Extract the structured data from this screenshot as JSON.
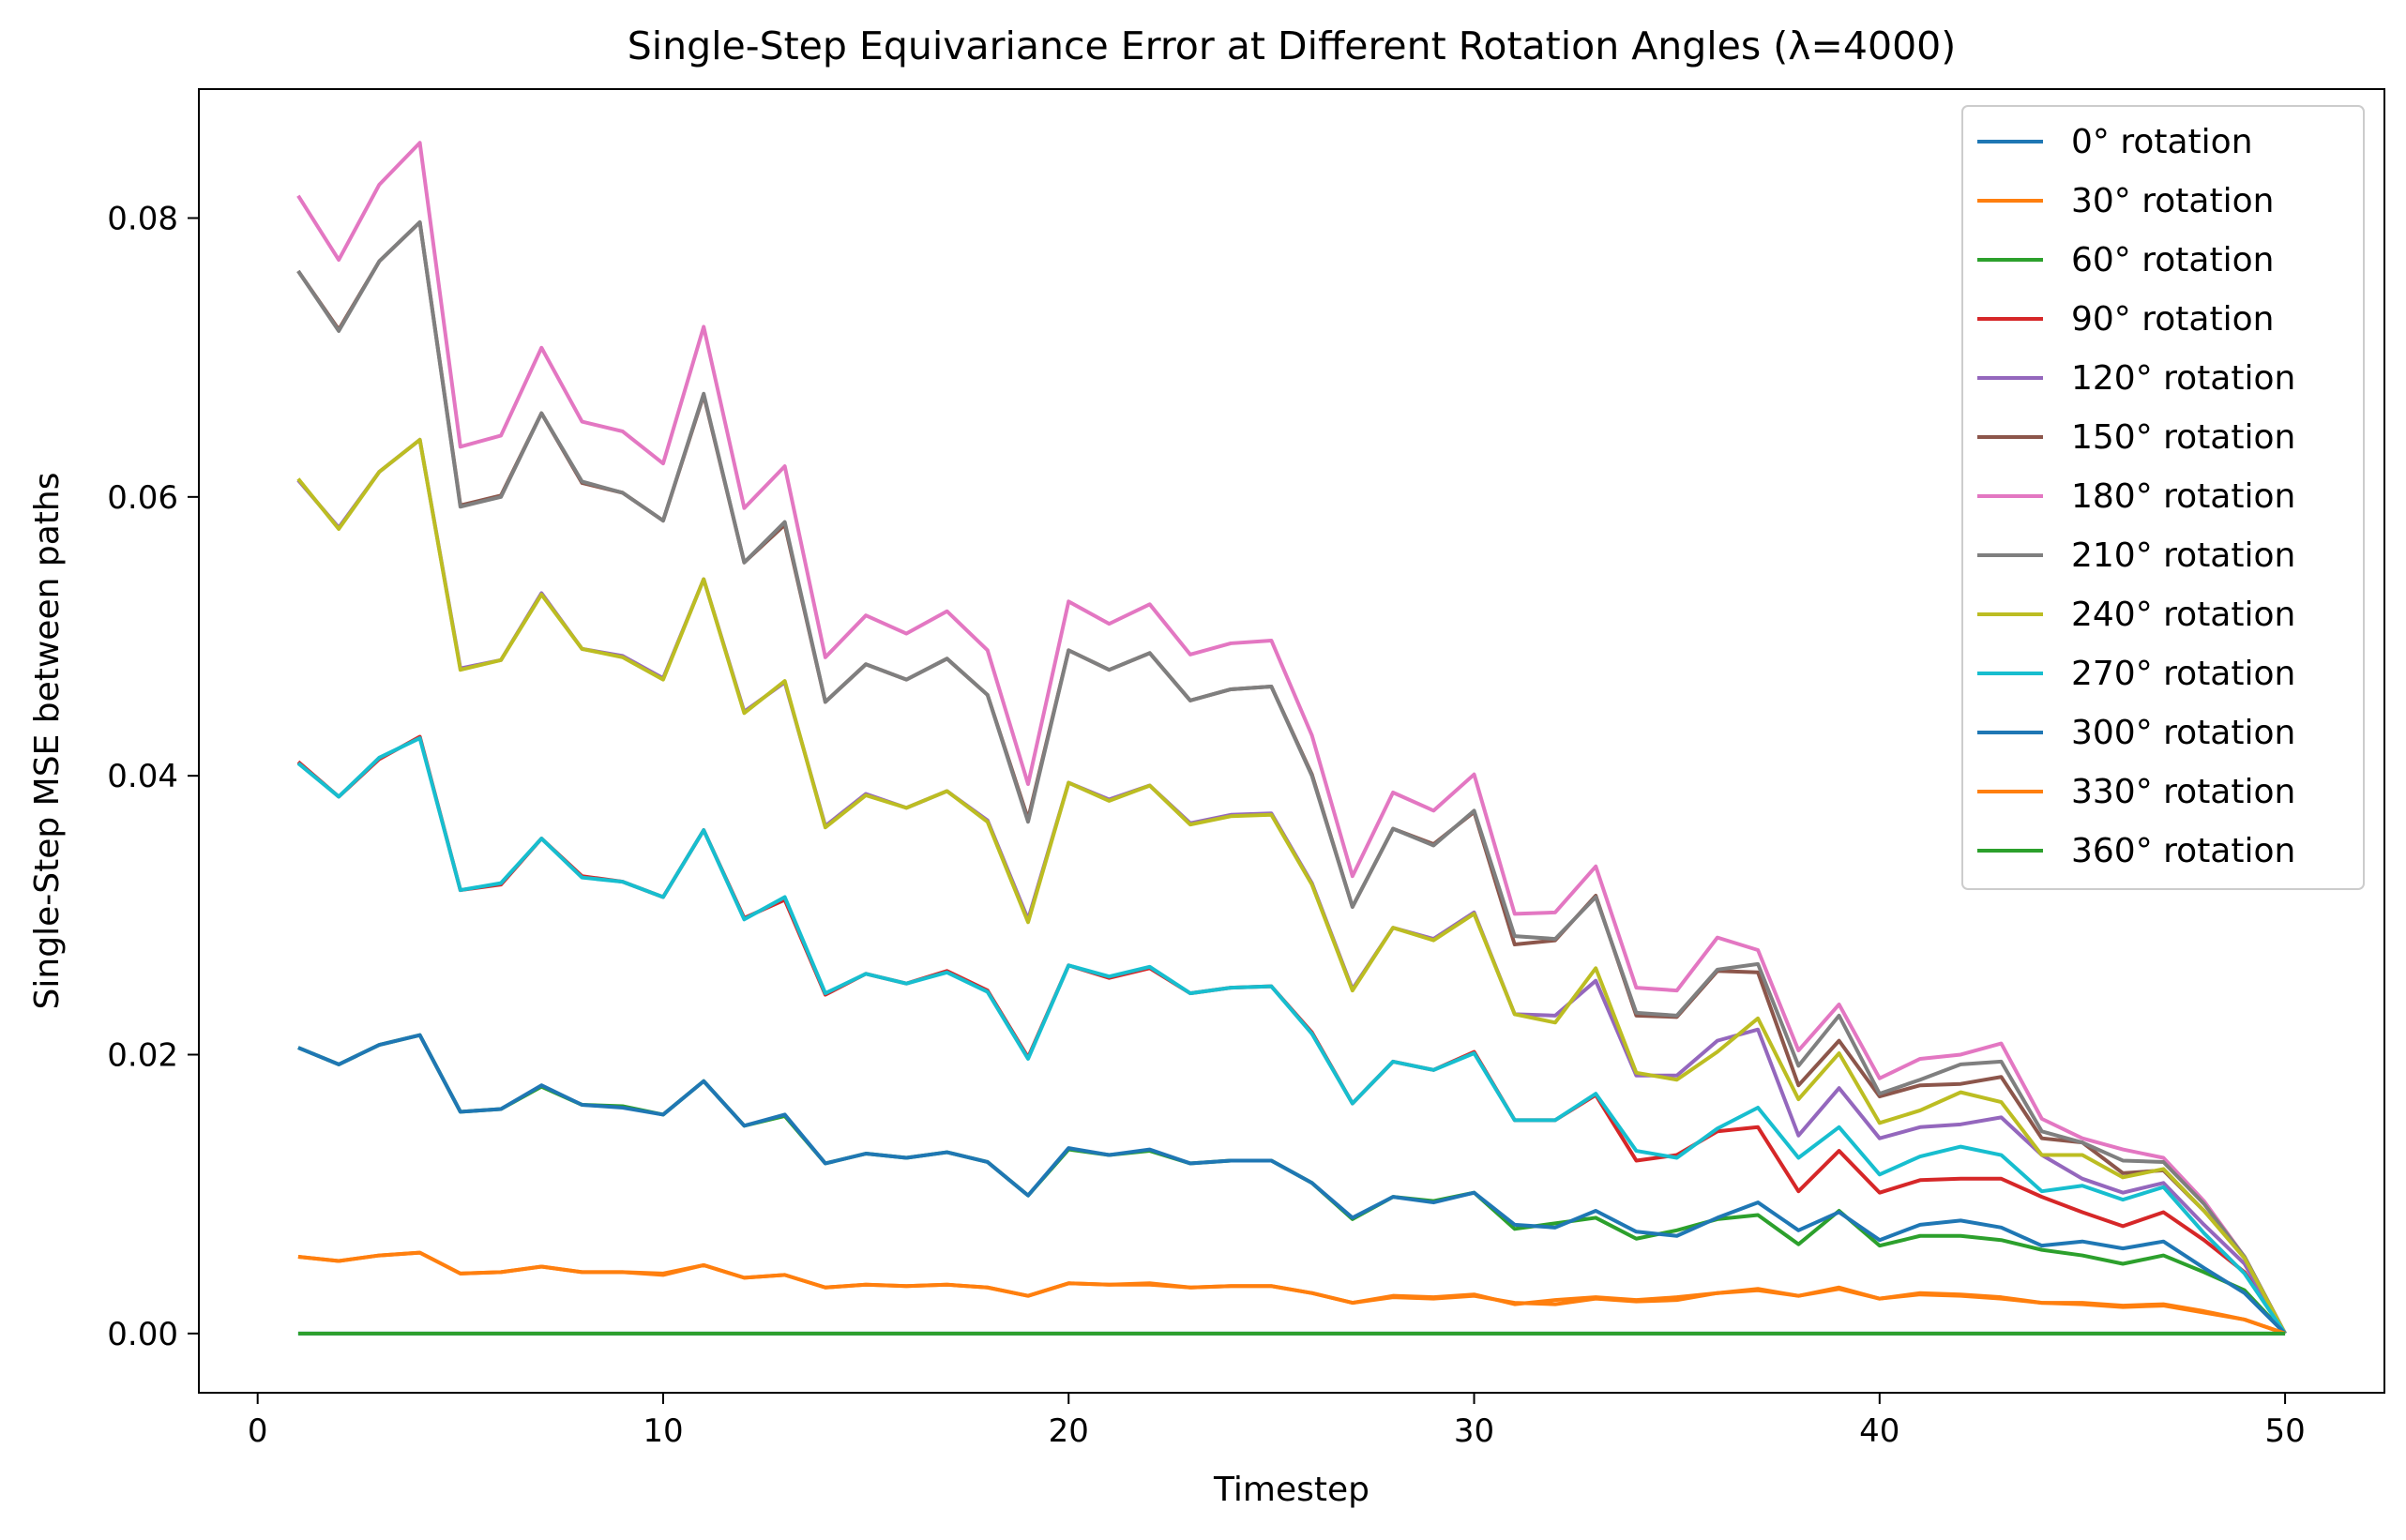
{
  "chart_data": {
    "type": "line",
    "title": "Single-Step Equivariance Error at Different Rotation Angles (λ=4000)",
    "xlabel": "Timestep",
    "ylabel": "Single-Step MSE between paths",
    "xlim": [
      -1.45,
      52.45
    ],
    "ylim": [
      -0.00425,
      0.08925
    ],
    "xticks": [
      0,
      10,
      20,
      30,
      40,
      50
    ],
    "xtick_labels": [
      "0",
      "10",
      "20",
      "30",
      "40",
      "50"
    ],
    "yticks": [
      0.0,
      0.02,
      0.04,
      0.06,
      0.08
    ],
    "ytick_labels": [
      "0.00",
      "0.02",
      "0.04",
      "0.06",
      "0.08"
    ],
    "grid": false,
    "legend_position": "upper right",
    "x": [
      1,
      2,
      3,
      4,
      5,
      6,
      7,
      8,
      9,
      10,
      11,
      12,
      13,
      14,
      15,
      16,
      17,
      18,
      19,
      20,
      21,
      22,
      23,
      24,
      25,
      26,
      27,
      28,
      29,
      30,
      31,
      32,
      33,
      34,
      35,
      36,
      37,
      38,
      39,
      40,
      41,
      42,
      43,
      44,
      45,
      46,
      47,
      48,
      49,
      50
    ],
    "series": [
      {
        "name": "0° rotation",
        "color": "#1f77b4",
        "values": [
          0,
          0,
          0,
          0,
          0,
          0,
          0,
          0,
          0,
          0,
          0,
          0,
          0,
          0,
          0,
          0,
          0,
          0,
          0,
          0,
          0,
          0,
          0,
          0,
          0,
          0,
          0,
          0,
          0,
          0,
          0,
          0,
          0,
          0,
          0,
          0,
          0,
          0,
          0,
          0,
          0,
          0,
          0,
          0,
          0,
          0,
          0,
          0,
          0,
          0
        ]
      },
      {
        "name": "30° rotation",
        "color": "#ff7f0e",
        "values": [
          0.0055,
          0.0052,
          0.0056,
          0.0058,
          0.0043,
          0.0044,
          0.0048,
          0.0044,
          0.0044,
          0.0043,
          0.0049,
          0.004,
          0.0042,
          0.0033,
          0.0035,
          0.0034,
          0.0035,
          0.0033,
          0.0027,
          0.0036,
          0.0035,
          0.0036,
          0.0033,
          0.0034,
          0.0034,
          0.0029,
          0.0022,
          0.0027,
          0.0026,
          0.0028,
          0.0021,
          0.0024,
          0.0026,
          0.0024,
          0.0026,
          0.0029,
          0.0032,
          0.0027,
          0.0033,
          0.0025,
          0.0029,
          0.0028,
          0.0026,
          0.0022,
          0.0021,
          0.0019,
          0.002,
          0.0015,
          0.001,
          0.0
        ]
      },
      {
        "name": "60° rotation",
        "color": "#2ca02c",
        "values": [
          0.0205,
          0.0193,
          0.0207,
          0.0214,
          0.0159,
          0.0161,
          0.0177,
          0.0164,
          0.0163,
          0.0157,
          0.0181,
          0.0149,
          0.0156,
          0.0122,
          0.0129,
          0.0126,
          0.013,
          0.0123,
          0.0099,
          0.0132,
          0.0128,
          0.0131,
          0.0122,
          0.0124,
          0.0124,
          0.0108,
          0.0082,
          0.0098,
          0.0095,
          0.0101,
          0.0075,
          0.0079,
          0.0083,
          0.0068,
          0.0074,
          0.0082,
          0.0085,
          0.0064,
          0.0088,
          0.0063,
          0.007,
          0.007,
          0.0067,
          0.006,
          0.0056,
          0.005,
          0.0056,
          0.0044,
          0.0031,
          0.0
        ]
      },
      {
        "name": "90° rotation",
        "color": "#d62728",
        "values": [
          0.041,
          0.0385,
          0.0412,
          0.0428,
          0.0318,
          0.0322,
          0.0355,
          0.0328,
          0.0324,
          0.0313,
          0.0361,
          0.0298,
          0.0311,
          0.0243,
          0.0258,
          0.0251,
          0.026,
          0.0246,
          0.0198,
          0.0264,
          0.0255,
          0.0262,
          0.0244,
          0.0248,
          0.0249,
          0.0216,
          0.0165,
          0.0195,
          0.0189,
          0.0202,
          0.0153,
          0.0153,
          0.0171,
          0.0124,
          0.0128,
          0.0145,
          0.0148,
          0.0102,
          0.0131,
          0.0101,
          0.011,
          0.0111,
          0.0111,
          0.0098,
          0.0087,
          0.0077,
          0.0087,
          0.0067,
          0.0044,
          0.0
        ]
      },
      {
        "name": "120° rotation",
        "color": "#9467bd",
        "values": [
          0.0612,
          0.0578,
          0.0618,
          0.0641,
          0.0477,
          0.0483,
          0.0531,
          0.0491,
          0.0486,
          0.047,
          0.0541,
          0.0446,
          0.0467,
          0.0364,
          0.0387,
          0.0377,
          0.0389,
          0.0368,
          0.0297,
          0.0395,
          0.0383,
          0.0393,
          0.0366,
          0.0372,
          0.0373,
          0.0323,
          0.0247,
          0.0291,
          0.0283,
          0.0302,
          0.0229,
          0.0228,
          0.0253,
          0.0185,
          0.0185,
          0.021,
          0.0218,
          0.0142,
          0.0176,
          0.014,
          0.0148,
          0.015,
          0.0155,
          0.0128,
          0.0111,
          0.0101,
          0.0108,
          0.0078,
          0.005,
          0.0
        ]
      },
      {
        "name": "150° rotation",
        "color": "#8c564b",
        "values": [
          0.0762,
          0.072,
          0.0769,
          0.0797,
          0.0594,
          0.0601,
          0.066,
          0.061,
          0.0603,
          0.0583,
          0.0673,
          0.0553,
          0.058,
          0.0453,
          0.048,
          0.0469,
          0.0484,
          0.0458,
          0.0369,
          0.049,
          0.0476,
          0.0488,
          0.0454,
          0.0462,
          0.0464,
          0.0401,
          0.0306,
          0.0362,
          0.0351,
          0.0374,
          0.0279,
          0.0282,
          0.0314,
          0.0228,
          0.0227,
          0.026,
          0.0259,
          0.0178,
          0.021,
          0.017,
          0.0178,
          0.0179,
          0.0184,
          0.014,
          0.0137,
          0.0115,
          0.0117,
          0.0088,
          0.0055,
          0.0
        ]
      },
      {
        "name": "180° rotation",
        "color": "#e377c2",
        "values": [
          0.0816,
          0.077,
          0.0824,
          0.0854,
          0.0636,
          0.0644,
          0.0707,
          0.0654,
          0.0647,
          0.0624,
          0.0722,
          0.0592,
          0.0622,
          0.0485,
          0.0515,
          0.0502,
          0.0518,
          0.049,
          0.0394,
          0.0525,
          0.0509,
          0.0523,
          0.0487,
          0.0495,
          0.0497,
          0.0429,
          0.0328,
          0.0388,
          0.0375,
          0.0401,
          0.0301,
          0.0302,
          0.0335,
          0.0248,
          0.0246,
          0.0284,
          0.0275,
          0.0203,
          0.0236,
          0.0183,
          0.0197,
          0.02,
          0.0208,
          0.0154,
          0.014,
          0.0132,
          0.0126,
          0.0095,
          0.0055,
          0.0
        ]
      },
      {
        "name": "210° rotation",
        "color": "#7f7f7f",
        "values": [
          0.0762,
          0.0719,
          0.0769,
          0.0797,
          0.0593,
          0.06,
          0.066,
          0.0611,
          0.0603,
          0.0583,
          0.0674,
          0.0553,
          0.0582,
          0.0453,
          0.048,
          0.0469,
          0.0484,
          0.0458,
          0.0367,
          0.049,
          0.0476,
          0.0488,
          0.0454,
          0.0462,
          0.0464,
          0.04,
          0.0306,
          0.0362,
          0.035,
          0.0375,
          0.0285,
          0.0283,
          0.0313,
          0.023,
          0.0228,
          0.0261,
          0.0265,
          0.0192,
          0.0228,
          0.0172,
          0.0182,
          0.0193,
          0.0195,
          0.0145,
          0.0137,
          0.0124,
          0.0123,
          0.0093,
          0.0055,
          0.0
        ]
      },
      {
        "name": "240° rotation",
        "color": "#bcbd22",
        "values": [
          0.0613,
          0.0577,
          0.0618,
          0.0641,
          0.0476,
          0.0483,
          0.053,
          0.0491,
          0.0485,
          0.0469,
          0.0541,
          0.0445,
          0.0468,
          0.0363,
          0.0386,
          0.0377,
          0.0389,
          0.0367,
          0.0295,
          0.0395,
          0.0382,
          0.0393,
          0.0365,
          0.0371,
          0.0372,
          0.0322,
          0.0246,
          0.0291,
          0.0282,
          0.0301,
          0.0229,
          0.0223,
          0.0262,
          0.0187,
          0.0182,
          0.0202,
          0.0226,
          0.0168,
          0.0201,
          0.0151,
          0.016,
          0.0173,
          0.0166,
          0.0128,
          0.0128,
          0.0112,
          0.0118,
          0.0088,
          0.0054,
          0.0
        ]
      },
      {
        "name": "270° rotation",
        "color": "#17becf",
        "values": [
          0.0409,
          0.0385,
          0.0413,
          0.0427,
          0.0318,
          0.0323,
          0.0355,
          0.0327,
          0.0324,
          0.0313,
          0.0361,
          0.0297,
          0.0313,
          0.0244,
          0.0258,
          0.0251,
          0.0259,
          0.0245,
          0.0197,
          0.0264,
          0.0256,
          0.0263,
          0.0244,
          0.0248,
          0.0249,
          0.0215,
          0.0165,
          0.0195,
          0.0189,
          0.0201,
          0.0153,
          0.0153,
          0.0172,
          0.0131,
          0.0126,
          0.0147,
          0.0162,
          0.0126,
          0.0148,
          0.0114,
          0.0127,
          0.0134,
          0.0128,
          0.0102,
          0.0106,
          0.0096,
          0.0105,
          0.0072,
          0.0043,
          0.0
        ]
      },
      {
        "name": "300° rotation",
        "color": "#1f77b4",
        "values": [
          0.0205,
          0.0193,
          0.0207,
          0.0214,
          0.0159,
          0.0161,
          0.0178,
          0.0164,
          0.0162,
          0.0157,
          0.0181,
          0.0149,
          0.0157,
          0.0122,
          0.0129,
          0.0126,
          0.013,
          0.0123,
          0.0099,
          0.0133,
          0.0128,
          0.0132,
          0.0122,
          0.0124,
          0.0124,
          0.0108,
          0.0083,
          0.0098,
          0.0094,
          0.0101,
          0.0078,
          0.0076,
          0.0088,
          0.0073,
          0.007,
          0.0083,
          0.0094,
          0.0074,
          0.0087,
          0.0067,
          0.0078,
          0.0081,
          0.0076,
          0.0063,
          0.0066,
          0.0061,
          0.0066,
          0.0047,
          0.0029,
          0.0
        ]
      },
      {
        "name": "330° rotation",
        "color": "#ff7f0e",
        "values": [
          0.0055,
          0.0052,
          0.0056,
          0.0058,
          0.0043,
          0.0044,
          0.0048,
          0.0044,
          0.0044,
          0.0042,
          0.0049,
          0.004,
          0.0042,
          0.0033,
          0.0035,
          0.0034,
          0.0035,
          0.0033,
          0.0027,
          0.0036,
          0.0035,
          0.0035,
          0.0033,
          0.0034,
          0.0034,
          0.0029,
          0.0022,
          0.0026,
          0.0025,
          0.0027,
          0.0022,
          0.0021,
          0.0025,
          0.0023,
          0.0024,
          0.0029,
          0.0031,
          0.0027,
          0.0032,
          0.0025,
          0.0028,
          0.0027,
          0.0025,
          0.0022,
          0.0022,
          0.002,
          0.0021,
          0.0016,
          0.001,
          0.0
        ]
      },
      {
        "name": "360° rotation",
        "color": "#2ca02c",
        "values": [
          0,
          0,
          0,
          0,
          0,
          0,
          0,
          0,
          0,
          0,
          0,
          0,
          0,
          0,
          0,
          0,
          0,
          0,
          0,
          0,
          0,
          0,
          0,
          0,
          0,
          0,
          0,
          0,
          0,
          0,
          0,
          0,
          0,
          0,
          0,
          0,
          0,
          0,
          0,
          0,
          0,
          0,
          0,
          0,
          0,
          0,
          0,
          0,
          0,
          0
        ]
      }
    ]
  }
}
